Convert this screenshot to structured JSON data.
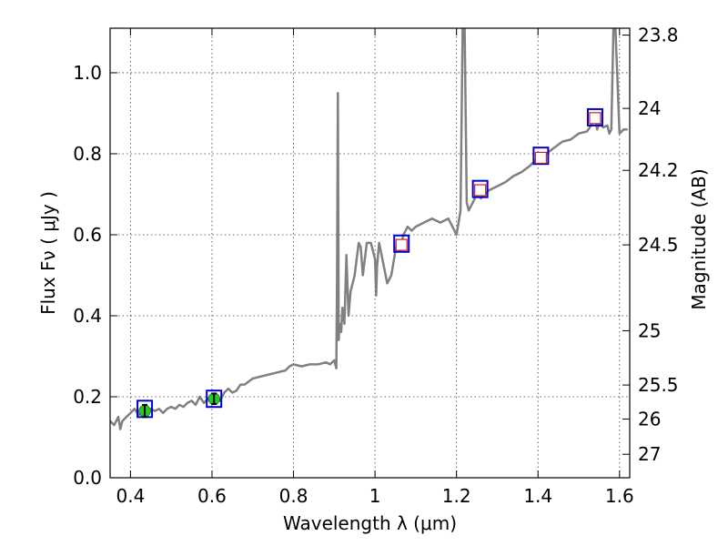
{
  "chart_data": {
    "type": "line",
    "xlabel": "Wavelength  λ (μm)",
    "ylabel": "Flux  Fν  ( μJy )",
    "y2label": "Magnitude (AB)",
    "xlim": [
      0.35,
      1.625
    ],
    "ylim": [
      0.0,
      1.11
    ],
    "grid": true,
    "x_ticks": [
      {
        "value": 0.4,
        "label": "0.4"
      },
      {
        "value": 0.6,
        "label": "0.6"
      },
      {
        "value": 0.8,
        "label": "0.8"
      },
      {
        "value": 1.0,
        "label": "1"
      },
      {
        "value": 1.2,
        "label": "1.2"
      },
      {
        "value": 1.4,
        "label": "1.4"
      },
      {
        "value": 1.6,
        "label": "1.6"
      }
    ],
    "y_ticks": [
      {
        "value": 0.0,
        "label": "0.0"
      },
      {
        "value": 0.2,
        "label": "0.2"
      },
      {
        "value": 0.4,
        "label": "0.4"
      },
      {
        "value": 0.6,
        "label": "0.6"
      },
      {
        "value": 0.8,
        "label": "0.8"
      },
      {
        "value": 1.0,
        "label": "1.0"
      }
    ],
    "y2_ticks": [
      {
        "label": "23.8",
        "flux": 1.093
      },
      {
        "label": "24",
        "flux": 0.912
      },
      {
        "label": "24.2",
        "flux": 0.759
      },
      {
        "label": "24.5",
        "flux": 0.575
      },
      {
        "label": "25",
        "flux": 0.363
      },
      {
        "label": "25.5",
        "flux": 0.229
      },
      {
        "label": "26",
        "flux": 0.145
      },
      {
        "label": "27",
        "flux": 0.058
      }
    ],
    "series": [
      {
        "kind": "model_spectrum",
        "color": "#808080",
        "x": [
          0.35,
          0.36,
          0.37,
          0.375,
          0.38,
          0.39,
          0.4,
          0.41,
          0.42,
          0.43,
          0.44,
          0.45,
          0.46,
          0.47,
          0.48,
          0.49,
          0.5,
          0.51,
          0.52,
          0.53,
          0.54,
          0.55,
          0.56,
          0.57,
          0.58,
          0.59,
          0.6,
          0.61,
          0.62,
          0.63,
          0.64,
          0.65,
          0.66,
          0.67,
          0.68,
          0.7,
          0.72,
          0.74,
          0.76,
          0.78,
          0.79,
          0.8,
          0.82,
          0.84,
          0.86,
          0.88,
          0.89,
          0.9,
          0.905,
          0.907,
          0.909,
          0.911,
          0.913,
          0.917,
          0.92,
          0.925,
          0.93,
          0.935,
          0.94,
          0.945,
          0.95,
          0.96,
          0.965,
          0.97,
          0.98,
          0.99,
          1.0,
          1.003,
          1.005,
          1.01,
          1.02,
          1.03,
          1.04,
          1.05,
          1.055,
          1.06,
          1.07,
          1.08,
          1.09,
          1.1,
          1.12,
          1.14,
          1.16,
          1.18,
          1.19,
          1.2,
          1.21,
          1.215,
          1.22,
          1.225,
          1.23,
          1.24,
          1.25,
          1.26,
          1.28,
          1.3,
          1.32,
          1.34,
          1.36,
          1.38,
          1.4,
          1.42,
          1.44,
          1.46,
          1.48,
          1.5,
          1.52,
          1.53,
          1.54,
          1.545,
          1.55,
          1.56,
          1.57,
          1.575,
          1.58,
          1.585,
          1.59,
          1.6,
          1.61,
          1.62
        ],
        "y": [
          0.14,
          0.13,
          0.15,
          0.12,
          0.14,
          0.15,
          0.16,
          0.17,
          0.155,
          0.16,
          0.165,
          0.17,
          0.165,
          0.17,
          0.16,
          0.17,
          0.175,
          0.17,
          0.18,
          0.175,
          0.185,
          0.19,
          0.18,
          0.2,
          0.185,
          0.195,
          0.195,
          0.2,
          0.19,
          0.21,
          0.22,
          0.21,
          0.215,
          0.23,
          0.23,
          0.245,
          0.25,
          0.255,
          0.26,
          0.265,
          0.275,
          0.28,
          0.275,
          0.28,
          0.28,
          0.285,
          0.28,
          0.29,
          0.27,
          0.5,
          0.95,
          0.34,
          0.38,
          0.36,
          0.42,
          0.38,
          0.55,
          0.4,
          0.46,
          0.48,
          0.5,
          0.58,
          0.57,
          0.5,
          0.58,
          0.58,
          0.54,
          0.45,
          0.52,
          0.58,
          0.53,
          0.48,
          0.5,
          0.56,
          0.58,
          0.56,
          0.6,
          0.62,
          0.61,
          0.62,
          0.63,
          0.64,
          0.63,
          0.64,
          0.62,
          0.6,
          0.66,
          1.11,
          1.11,
          0.68,
          0.66,
          0.68,
          0.7,
          0.69,
          0.71,
          0.72,
          0.73,
          0.745,
          0.755,
          0.77,
          0.79,
          0.8,
          0.815,
          0.83,
          0.835,
          0.85,
          0.855,
          0.87,
          0.89,
          0.86,
          0.875,
          0.865,
          0.87,
          0.85,
          0.86,
          1.11,
          1.11,
          0.85,
          0.86,
          0.86
        ]
      },
      {
        "kind": "detections_optical",
        "color": "#22cc22",
        "x": [
          0.435,
          0.605
        ],
        "y": [
          0.165,
          0.195
        ],
        "yerr": [
          0.015,
          0.013
        ]
      },
      {
        "kind": "detections_ir",
        "color": "#cc2222",
        "x": [
          1.065,
          1.258,
          1.407,
          1.54
        ],
        "y": [
          0.575,
          0.71,
          0.79,
          0.888
        ]
      },
      {
        "kind": "model_photometry",
        "color": "#0000cc",
        "x": [
          0.435,
          0.605,
          1.065,
          1.258,
          1.407,
          1.54
        ],
        "y": [
          0.17,
          0.195,
          0.578,
          0.713,
          0.795,
          0.89
        ]
      }
    ]
  }
}
